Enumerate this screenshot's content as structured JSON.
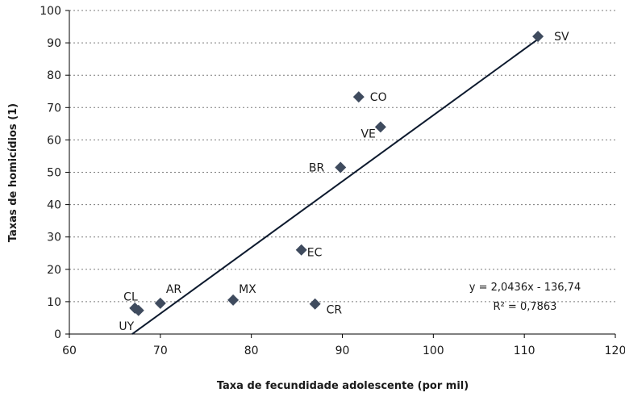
{
  "chart_data": {
    "type": "scatter",
    "xlabel": "Taxa de fecundidade adolescente (por mil)",
    "ylabel": "Taxas de homicídios (1)",
    "xlim": [
      60,
      120
    ],
    "ylim": [
      0,
      100
    ],
    "x_ticks": [
      60,
      70,
      80,
      90,
      100,
      110,
      120
    ],
    "y_ticks": [
      0,
      10,
      20,
      30,
      40,
      50,
      60,
      70,
      80,
      90,
      100
    ],
    "x_tick_labels": [
      "60",
      "70",
      "80",
      "90",
      "100",
      "110",
      "120"
    ],
    "y_tick_labels": [
      "0",
      "10",
      "20",
      "30",
      "40",
      "50",
      "60",
      "70",
      "80",
      "90",
      "100"
    ],
    "grid": "horizontal dashed",
    "marker": "diamond",
    "marker_color": "#3f4b5e",
    "points": [
      {
        "label": "SV",
        "x": 111.5,
        "y": 92
      },
      {
        "label": "CO",
        "x": 91.8,
        "y": 73.3
      },
      {
        "label": "VE",
        "x": 94.2,
        "y": 64
      },
      {
        "label": "BR",
        "x": 89.8,
        "y": 51.5
      },
      {
        "label": "EC",
        "x": 85.5,
        "y": 26
      },
      {
        "label": "MX",
        "x": 78,
        "y": 10.5
      },
      {
        "label": "CR",
        "x": 87,
        "y": 9.3
      },
      {
        "label": "AR",
        "x": 70,
        "y": 9.5
      },
      {
        "label": "CL",
        "x": 67.6,
        "y": 7.3
      },
      {
        "label": "UY",
        "x": 67.2,
        "y": 8
      }
    ],
    "trendline": {
      "slope": 2.0436,
      "intercept": -136.74,
      "x_range": [
        66.9,
        111.5
      ],
      "color": "#0d1a2e",
      "equation": "y = 2,0436x  - 136,74",
      "r_squared": "R² = 0,7863"
    }
  }
}
